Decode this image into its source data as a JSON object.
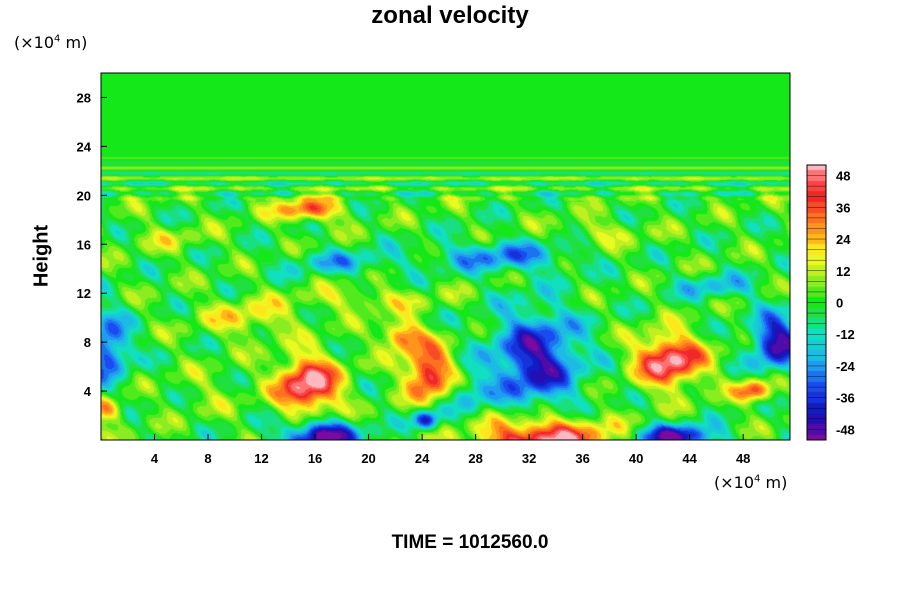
{
  "chart_data": {
    "type": "heatmap",
    "title": "zonal velocity",
    "ylabel": "Height",
    "y_unit_prefix": "(×10",
    "y_unit_exp": "4",
    "y_unit_suffix": " m)",
    "x_unit_prefix": "(×10",
    "x_unit_exp": "4",
    "x_unit_suffix": " m)",
    "footer": "TIME = 1012560.0",
    "xlim": [
      0,
      51.5
    ],
    "ylim": [
      0,
      30
    ],
    "x_ticks": [
      4,
      8,
      12,
      16,
      20,
      24,
      28,
      32,
      36,
      40,
      44,
      48
    ],
    "y_ticks": [
      4,
      8,
      12,
      16,
      20,
      24,
      28
    ],
    "colorbar": {
      "range": [
        -52,
        52
      ],
      "ticks": [
        48,
        36,
        24,
        12,
        0,
        -12,
        -24,
        -36,
        -48
      ],
      "stops": [
        {
          "v": -52,
          "c": "#7a0aa0"
        },
        {
          "v": -42,
          "c": "#1010b8"
        },
        {
          "v": -32,
          "c": "#1a4af0"
        },
        {
          "v": -22,
          "c": "#20b0f0"
        },
        {
          "v": -12,
          "c": "#10e0c0"
        },
        {
          "v": -4,
          "c": "#20e040"
        },
        {
          "v": 0,
          "c": "#14e818"
        },
        {
          "v": 6,
          "c": "#70ec20"
        },
        {
          "v": 12,
          "c": "#c0f020"
        },
        {
          "v": 18,
          "c": "#ffff20"
        },
        {
          "v": 24,
          "c": "#ffb818"
        },
        {
          "v": 32,
          "c": "#ff7020"
        },
        {
          "v": 40,
          "c": "#f02828"
        },
        {
          "v": 46,
          "c": "#ff5050"
        },
        {
          "v": 52,
          "c": "#ffb8c0"
        }
      ]
    },
    "features": [
      {
        "x": 15.5,
        "y": 4.5,
        "sx": 2.3,
        "sy": 2.3,
        "amp": 54
      },
      {
        "x": 24.5,
        "y": 5.5,
        "sx": 1.7,
        "sy": 2.2,
        "amp": 48
      },
      {
        "x": 22.5,
        "y": 8.5,
        "sx": 1.5,
        "sy": 1.2,
        "amp": 36
      },
      {
        "x": 42.5,
        "y": 6.5,
        "sx": 2.5,
        "sy": 2.1,
        "amp": 52
      },
      {
        "x": 33.0,
        "y": 0.0,
        "sx": 4.8,
        "sy": 1.9,
        "amp": 54
      },
      {
        "x": 16.5,
        "y": 0.3,
        "sx": 2.6,
        "sy": 1.3,
        "amp": -56
      },
      {
        "x": 24.3,
        "y": 1.6,
        "sx": 1.0,
        "sy": 0.8,
        "amp": -44
      },
      {
        "x": 43.0,
        "y": 0.2,
        "sx": 2.8,
        "sy": 1.0,
        "amp": -50
      },
      {
        "x": 32.5,
        "y": 6.5,
        "sx": 3.3,
        "sy": 4.0,
        "amp": -44
      },
      {
        "x": 50.5,
        "y": 8.0,
        "sx": 1.8,
        "sy": 2.2,
        "amp": -48
      },
      {
        "x": 0.5,
        "y": 7.5,
        "sx": 1.6,
        "sy": 2.8,
        "amp": -36
      },
      {
        "x": 48.8,
        "y": 4.0,
        "sx": 1.4,
        "sy": 0.9,
        "amp": 38
      },
      {
        "x": 15.5,
        "y": 18.8,
        "sx": 2.4,
        "sy": 0.9,
        "amp": 36
      },
      {
        "x": 30.0,
        "y": 15.0,
        "sx": 5.0,
        "sy": 1.2,
        "amp": -26
      },
      {
        "x": 18.0,
        "y": 14.5,
        "sx": 4.0,
        "sy": 1.0,
        "amp": -18
      },
      {
        "x": 11.0,
        "y": 10.0,
        "sx": 3.5,
        "sy": 1.5,
        "amp": 18
      },
      {
        "x": 0.5,
        "y": 2.5,
        "sx": 1.2,
        "sy": 1.0,
        "amp": 30
      },
      {
        "x": 8.0,
        "y": 4.0,
        "sx": 2.5,
        "sy": 2.0,
        "amp": 6
      },
      {
        "x": 27.5,
        "y": 3.5,
        "sx": 1.5,
        "sy": 2.0,
        "amp": -16
      },
      {
        "x": 20.0,
        "y": 11.5,
        "sx": 5.0,
        "sy": 1.0,
        "amp": 14
      },
      {
        "x": 46.0,
        "y": 12.5,
        "sx": 3.0,
        "sy": 1.0,
        "amp": -18
      },
      {
        "x": 37.5,
        "y": 17.0,
        "sx": 3.0,
        "sy": 1.0,
        "amp": 12
      },
      {
        "x": 5.0,
        "y": 16.5,
        "sx": 3.0,
        "sy": 1.0,
        "amp": 10
      }
    ]
  }
}
